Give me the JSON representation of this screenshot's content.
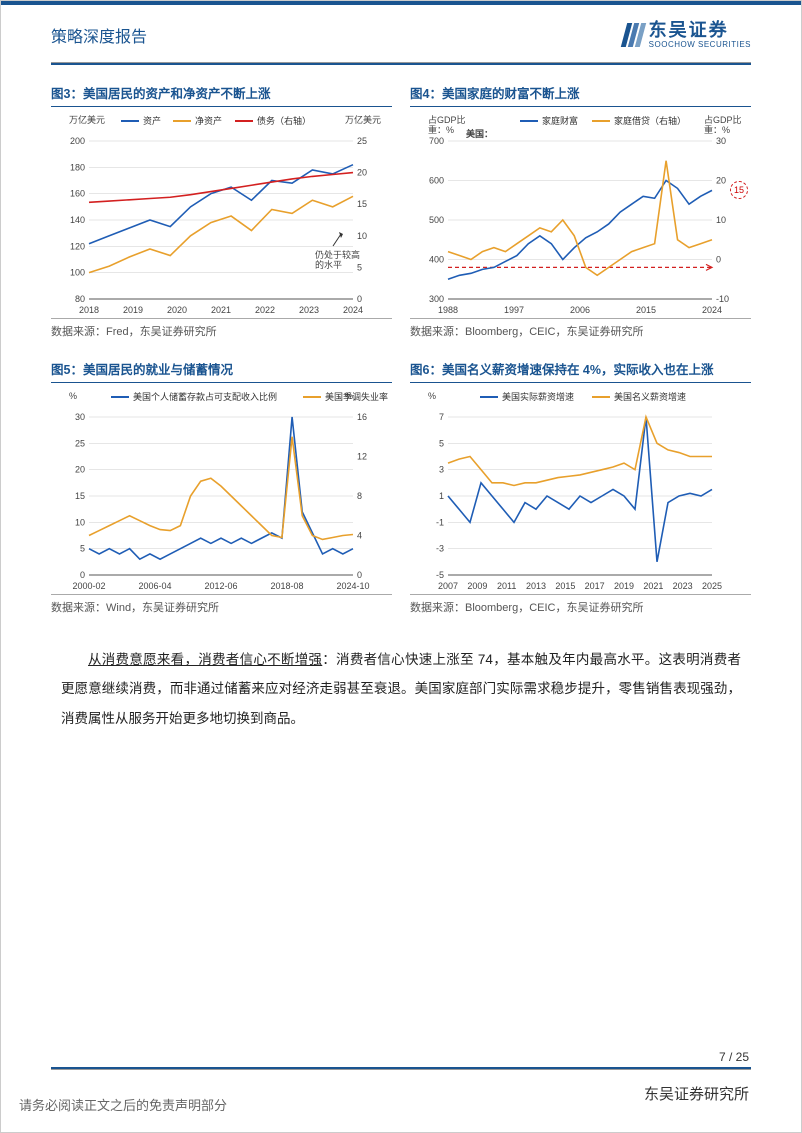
{
  "header": {
    "report_title": "策略深度报告",
    "logo_cn": "东吴证券",
    "logo_en": "SOOCHOW SECURITIES"
  },
  "colors": {
    "brand": "#1a5490",
    "series_blue": "#1f5db5",
    "series_orange": "#e8a02c",
    "series_red": "#d32020",
    "grid": "#cccccc",
    "axis": "#555555",
    "red_dash": "#d32020"
  },
  "fig3": {
    "title": "图3：美国居民的资产和净资产不断上涨",
    "source": "数据来源：Fred，东吴证券研究所",
    "type": "line",
    "xlabels": [
      "2018",
      "2019",
      "2020",
      "2021",
      "2022",
      "2023",
      "2024"
    ],
    "left_axis": {
      "label": "万亿美元",
      "ticks": [
        80,
        100,
        120,
        140,
        160,
        180,
        200
      ]
    },
    "right_axis": {
      "label": "万亿美元",
      "ticks": [
        0,
        5,
        10,
        15,
        20,
        25
      ]
    },
    "legend": [
      {
        "name": "资产",
        "color": "#1f5db5"
      },
      {
        "name": "净资产",
        "color": "#e8a02c"
      },
      {
        "name": "债务（右轴）",
        "color": "#d32020"
      }
    ],
    "series": {
      "assets": [
        122,
        128,
        134,
        140,
        135,
        150,
        160,
        165,
        155,
        170,
        168,
        178,
        175,
        182
      ],
      "net": [
        100,
        105,
        112,
        118,
        113,
        128,
        138,
        143,
        132,
        148,
        145,
        155,
        150,
        158
      ],
      "debt": [
        15.3,
        15.5,
        15.7,
        15.9,
        16.1,
        16.5,
        17.0,
        17.5,
        18.0,
        18.5,
        19.0,
        19.4,
        19.7,
        20
      ]
    },
    "annotation": "仍处于较高\\n的水平"
  },
  "fig4": {
    "title": "图4：美国家庭的财富不断上涨",
    "source": "数据来源：Bloomberg，CEIC，东吴证券研究所",
    "type": "line",
    "xlabels": [
      "1988",
      "1997",
      "2006",
      "2015",
      "2024"
    ],
    "left_axis": {
      "label": "占GDP比\\n重：%",
      "ticks": [
        300,
        400,
        500,
        600,
        700
      ]
    },
    "right_axis": {
      "label": "占GDP比\\n重：%",
      "ticks": [
        -10,
        0,
        10,
        20,
        30
      ]
    },
    "country_label": "美国：",
    "legend": [
      {
        "name": "家庭财富",
        "color": "#1f5db5"
      },
      {
        "name": "家庭借贷（右轴）",
        "color": "#e8a02c"
      }
    ],
    "series": {
      "wealth": [
        350,
        360,
        365,
        375,
        380,
        395,
        410,
        440,
        460,
        440,
        400,
        430,
        455,
        470,
        490,
        520,
        540,
        560,
        555,
        600,
        580,
        540,
        560,
        575
      ],
      "debtpc": [
        2,
        1,
        0,
        2,
        3,
        2,
        4,
        6,
        8,
        7,
        10,
        6,
        -2,
        -4,
        -2,
        0,
        2,
        3,
        4,
        25,
        5,
        3,
        4,
        5
      ]
    },
    "reference_line_y": 380,
    "circle_annotation": "15"
  },
  "fig5": {
    "title": "图5：美国居民的就业与储蓄情况",
    "source": "数据来源：Wind，东吴证券研究所",
    "type": "line",
    "xlabels": [
      "2000-02",
      "2006-04",
      "2012-06",
      "2018-08",
      "2024-10"
    ],
    "left_axis": {
      "label": "%",
      "ticks": [
        0,
        5,
        10,
        15,
        20,
        25,
        30
      ]
    },
    "right_axis": {
      "label": "%",
      "ticks": [
        0,
        4,
        8,
        12,
        16
      ]
    },
    "legend": [
      {
        "name": "美国个人储蓄存款占可支配收入比例",
        "color": "#1f5db5"
      },
      {
        "name": "美国季调失业率（右轴）",
        "color": "#e8a02c"
      }
    ],
    "series": {
      "savings": [
        5,
        4,
        5,
        4,
        5,
        3,
        4,
        3,
        4,
        5,
        6,
        7,
        6,
        7,
        6,
        7,
        6,
        7,
        8,
        7,
        30,
        12,
        8,
        4,
        5,
        4,
        5
      ],
      "unemp": [
        4,
        4.5,
        5,
        5.5,
        6,
        5.5,
        5,
        4.6,
        4.5,
        5,
        8,
        9.5,
        9.8,
        9,
        8,
        7,
        6,
        5,
        4,
        3.8,
        14,
        6,
        4,
        3.6,
        3.8,
        4,
        4.1
      ]
    }
  },
  "fig6": {
    "title": "图6：美国名义薪资增速保持在 4%，实际收入也在上涨",
    "source": "数据来源：Bloomberg，CEIC，东吴证券研究所",
    "type": "line",
    "xlabels": [
      "2007",
      "2009",
      "2011",
      "2013",
      "2015",
      "2017",
      "2019",
      "2021",
      "2023",
      "2025"
    ],
    "left_axis": {
      "label": "%",
      "ticks": [
        -5,
        -3,
        -1,
        1,
        3,
        5,
        7
      ]
    },
    "right_axis": {
      "label": "",
      "ticks": []
    },
    "legend": [
      {
        "name": "美国实际薪资增速",
        "color": "#1f5db5"
      },
      {
        "name": "美国名义薪资增速",
        "color": "#e8a02c"
      }
    ],
    "series": {
      "real": [
        1,
        0,
        -1,
        2,
        1,
        0,
        -1,
        0.5,
        0,
        1,
        0.5,
        0,
        1,
        0.5,
        1,
        1.5,
        1,
        0,
        7,
        -4,
        0.5,
        1,
        1.2,
        1,
        1.5
      ],
      "nominal": [
        3.5,
        3.8,
        4,
        3,
        2,
        2,
        1.8,
        2,
        2,
        2.2,
        2.4,
        2.5,
        2.6,
        2.8,
        3,
        3.2,
        3.5,
        3,
        7,
        5,
        4.5,
        4.3,
        4,
        4,
        4
      ]
    }
  },
  "paragraph": {
    "underline": "从消费意愿来看，消费者信心不断增强",
    "text": "：消费者信心快速上涨至 74，基本触及年内最高水平。这表明消费者更愿意继续消费，而非通过储蓄来应对经济走弱甚至衰退。美国家庭部门实际需求稳步提升，零售销售表现强劲，消费属性从服务开始更多地切换到商品。"
  },
  "footer": {
    "page": "7 / 25",
    "disclaimer": "请务必阅读正文之后的免责声明部分",
    "institution": "东吴证券研究所"
  }
}
